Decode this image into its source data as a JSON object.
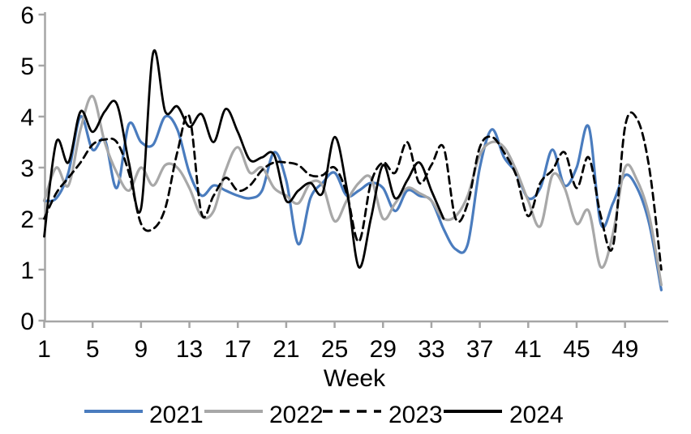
{
  "chart_data": {
    "type": "line",
    "xlabel": "Week",
    "xlim": [
      1,
      52
    ],
    "ylim": [
      0,
      6
    ],
    "yticks": [
      0,
      1,
      2,
      3,
      4,
      5,
      6
    ],
    "xticks": [
      1,
      5,
      9,
      13,
      17,
      21,
      25,
      29,
      33,
      37,
      41,
      45,
      49
    ],
    "grid": false,
    "legend_position": "bottom",
    "axis_color": "#A6A6A6",
    "text_color": "#000000",
    "x_week_start": 1,
    "x_week_step": 1,
    "series": [
      {
        "name": "2021",
        "color": "#4A7CBE",
        "style": "solid",
        "start_week": 1,
        "values": [
          2.35,
          2.4,
          2.9,
          4.0,
          3.35,
          3.55,
          2.6,
          3.85,
          3.5,
          3.45,
          4.0,
          3.75,
          2.9,
          2.45,
          2.65,
          2.55,
          2.45,
          2.4,
          2.55,
          3.3,
          2.75,
          1.5,
          2.4,
          2.7,
          2.9,
          2.45,
          2.55,
          2.7,
          2.6,
          2.15,
          2.55,
          2.45,
          2.35,
          1.8,
          1.4,
          1.5,
          3.0,
          3.75,
          3.2,
          2.9,
          2.4,
          2.6,
          3.35,
          2.65,
          3.0,
          3.8,
          1.9,
          2.3,
          2.85,
          2.6,
          1.9,
          0.6
        ]
      },
      {
        "name": "2022",
        "color": "#A8A8A8",
        "style": "solid",
        "start_week": 1,
        "values": [
          2.35,
          3.0,
          2.65,
          3.75,
          4.4,
          3.5,
          2.9,
          2.55,
          3.0,
          2.65,
          3.05,
          3.0,
          2.6,
          2.05,
          2.15,
          2.95,
          3.4,
          2.9,
          3.0,
          2.6,
          2.45,
          2.3,
          2.7,
          2.65,
          1.95,
          2.35,
          2.7,
          2.8,
          2.0,
          2.3,
          2.6,
          2.5,
          2.35,
          2.0,
          2.05,
          2.45,
          3.25,
          3.5,
          3.4,
          2.95,
          2.35,
          1.85,
          2.85,
          2.6,
          1.9,
          2.15,
          1.05,
          1.7,
          3.0,
          2.75,
          2.05,
          0.7
        ]
      },
      {
        "name": "2023",
        "color": "#000000",
        "style": "dashed",
        "start_week": 1,
        "values": [
          2.0,
          2.5,
          2.8,
          3.1,
          3.45,
          3.55,
          3.5,
          2.9,
          1.9,
          1.8,
          2.2,
          3.3,
          4.0,
          2.1,
          2.45,
          2.8,
          2.55,
          2.65,
          2.95,
          3.1,
          3.1,
          3.05,
          2.85,
          2.85,
          3.0,
          2.5,
          1.55,
          2.7,
          3.1,
          2.9,
          3.5,
          2.7,
          3.05,
          3.4,
          2.0,
          2.3,
          3.4,
          3.6,
          3.3,
          2.85,
          2.05,
          2.7,
          2.95,
          3.3,
          2.6,
          3.2,
          2.05,
          1.45,
          3.8,
          3.95,
          3.0,
          1.0
        ]
      },
      {
        "name": "2024",
        "color": "#000000",
        "style": "solid",
        "start_week": 1,
        "values": [
          1.65,
          3.5,
          3.1,
          4.1,
          3.7,
          4.1,
          4.25,
          3.1,
          2.2,
          5.25,
          4.1,
          4.2,
          3.8,
          4.05,
          3.5,
          4.15,
          3.7,
          3.15,
          3.2,
          3.25,
          2.35,
          2.55,
          2.7,
          2.5,
          3.6,
          2.6,
          1.05,
          2.0,
          3.05,
          2.4,
          2.75,
          3.1,
          2.55,
          2.0
        ]
      }
    ]
  }
}
